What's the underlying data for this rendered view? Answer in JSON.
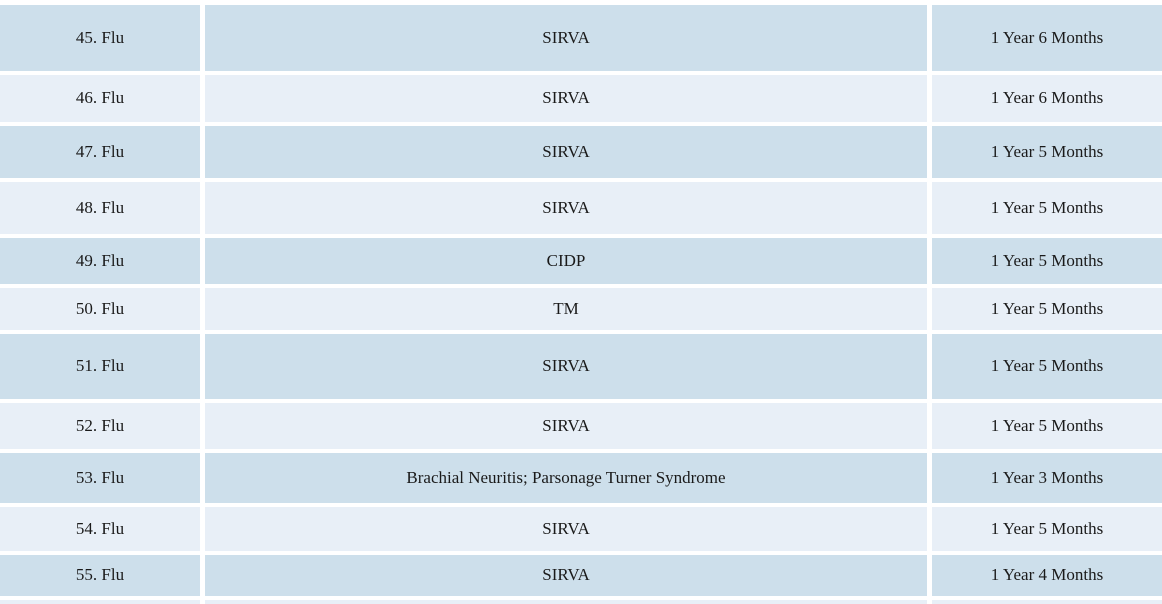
{
  "colors": {
    "row_dark": "#cddfeb",
    "row_light": "#e8eff7",
    "background": "#ffffff",
    "text": "#1a1a1a"
  },
  "table": {
    "rows": [
      {
        "case": "45. Flu",
        "injury": "SIRVA",
        "duration": "1 Year 6 Months"
      },
      {
        "case": "46. Flu",
        "injury": "SIRVA",
        "duration": "1 Year 6 Months"
      },
      {
        "case": "47. Flu",
        "injury": "SIRVA",
        "duration": "1 Year 5 Months"
      },
      {
        "case": "48. Flu",
        "injury": "SIRVA",
        "duration": "1 Year 5 Months"
      },
      {
        "case": "49. Flu",
        "injury": "CIDP",
        "duration": "1 Year 5 Months"
      },
      {
        "case": "50. Flu",
        "injury": "TM",
        "duration": "1 Year 5 Months"
      },
      {
        "case": "51. Flu",
        "injury": "SIRVA",
        "duration": "1 Year 5 Months"
      },
      {
        "case": "52. Flu",
        "injury": "SIRVA",
        "duration": "1 Year 5 Months"
      },
      {
        "case": "53. Flu",
        "injury": "Brachial Neuritis; Parsonage Turner Syndrome",
        "duration": "1 Year 3 Months"
      },
      {
        "case": "54. Flu",
        "injury": "SIRVA",
        "duration": "1 Year 5 Months"
      },
      {
        "case": "55. Flu",
        "injury": "SIRVA",
        "duration": "1 Year 4 Months"
      }
    ],
    "partial_next_row": {
      "case": "",
      "injury": "",
      "duration": ""
    }
  }
}
